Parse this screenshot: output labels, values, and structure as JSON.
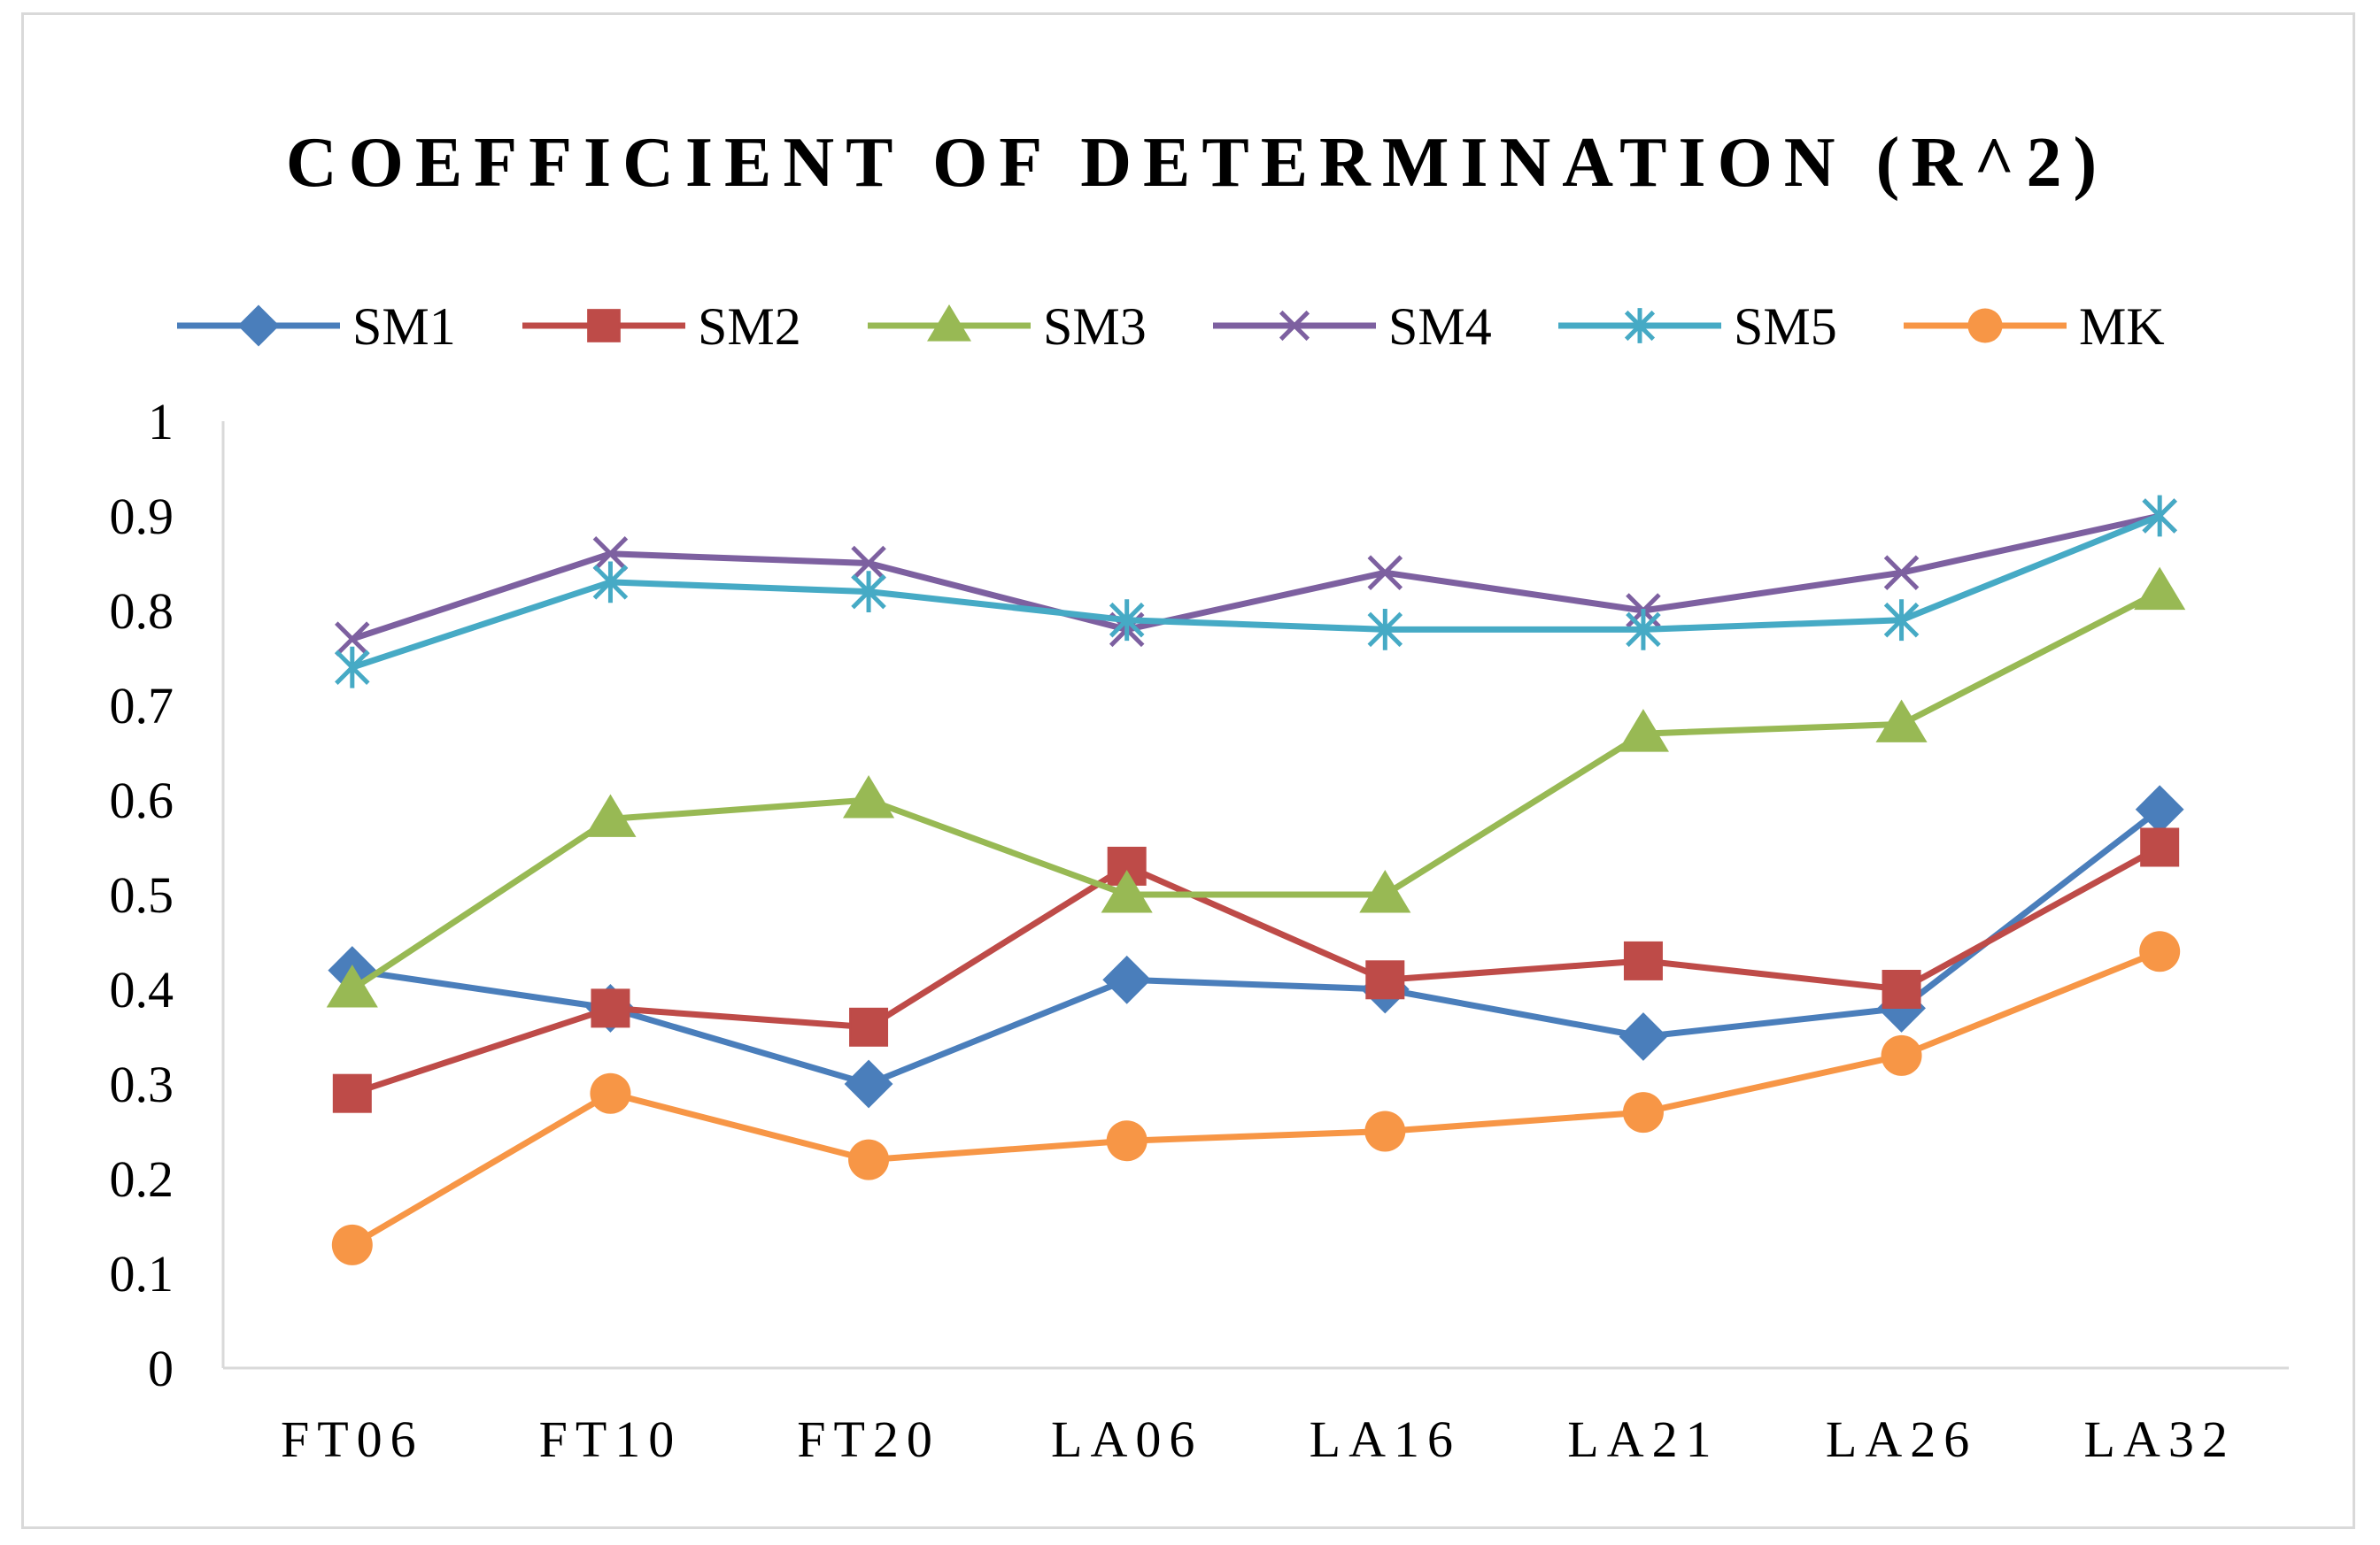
{
  "chart_data": {
    "type": "line",
    "title": "COEFFICIENT OF DETERMINATION (R^2)",
    "xlabel": "",
    "ylabel": "",
    "categories": [
      "FT06",
      "FT10",
      "FT20",
      "LA06",
      "LA16",
      "LA21",
      "LA26",
      "LA32"
    ],
    "ylim": [
      0,
      1
    ],
    "yticks": [
      "0",
      "0.1",
      "0.2",
      "0.3",
      "0.4",
      "0.5",
      "0.6",
      "0.7",
      "0.8",
      "0.9",
      "1"
    ],
    "grid": false,
    "legend_position": "top",
    "series": [
      {
        "name": "SM1",
        "color": "#4a7ebb",
        "marker": "diamond",
        "values": [
          0.42,
          0.38,
          0.3,
          0.41,
          0.4,
          0.35,
          0.38,
          0.59
        ]
      },
      {
        "name": "SM2",
        "color": "#be4b48",
        "marker": "square",
        "values": [
          0.29,
          0.38,
          0.36,
          0.53,
          0.41,
          0.43,
          0.4,
          0.55
        ]
      },
      {
        "name": "SM3",
        "color": "#98b954",
        "marker": "triangle",
        "values": [
          0.4,
          0.58,
          0.6,
          0.5,
          0.5,
          0.67,
          0.68,
          0.82
        ]
      },
      {
        "name": "SM4",
        "color": "#7d60a0",
        "marker": "x",
        "values": [
          0.77,
          0.86,
          0.85,
          0.78,
          0.84,
          0.8,
          0.84,
          0.9
        ]
      },
      {
        "name": "SM5",
        "color": "#46aac5",
        "marker": "star",
        "values": [
          0.74,
          0.83,
          0.82,
          0.79,
          0.78,
          0.78,
          0.79,
          0.9
        ]
      },
      {
        "name": "MK",
        "color": "#f79646",
        "marker": "circle",
        "values": [
          0.13,
          0.29,
          0.22,
          0.24,
          0.25,
          0.27,
          0.33,
          0.44
        ]
      }
    ]
  }
}
